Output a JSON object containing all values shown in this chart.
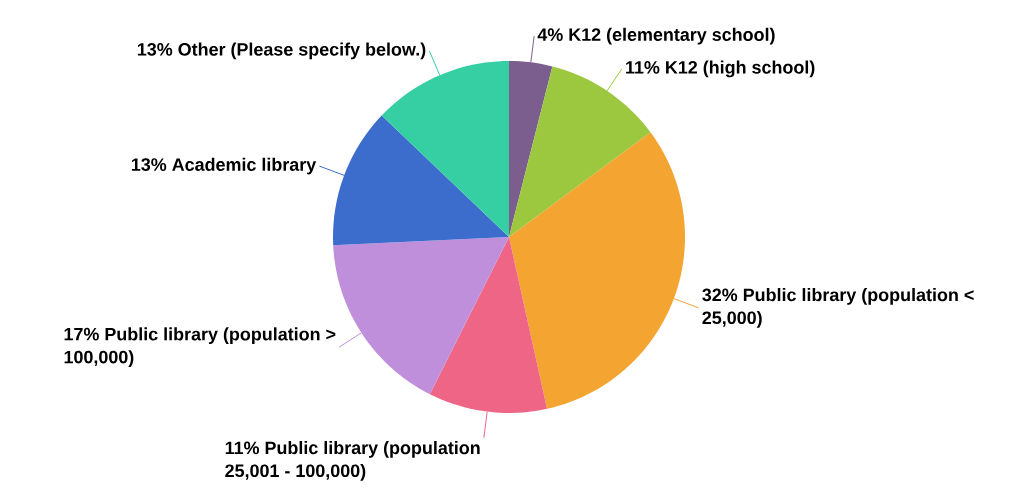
{
  "chart_data": {
    "type": "pie",
    "categories": [
      "K12 (elementary school)",
      "K12 (high school)",
      "Public library (population < 25,000)",
      "Public library (population 25,001 - 100,000)",
      "Public library (population > 100,000)",
      "Academic library",
      "Other (Please specify below.)"
    ],
    "values": [
      4,
      11,
      32,
      11,
      17,
      13,
      13
    ],
    "value_labels": [
      "4%",
      "11%",
      "32%",
      "11%",
      "17%",
      "13%",
      "13%"
    ],
    "colors": [
      "#7b5e8e",
      "#9bc83f",
      "#f4a431",
      "#ef6585",
      "#bf8fdb",
      "#3d6dcc",
      "#35cfa3"
    ]
  }
}
